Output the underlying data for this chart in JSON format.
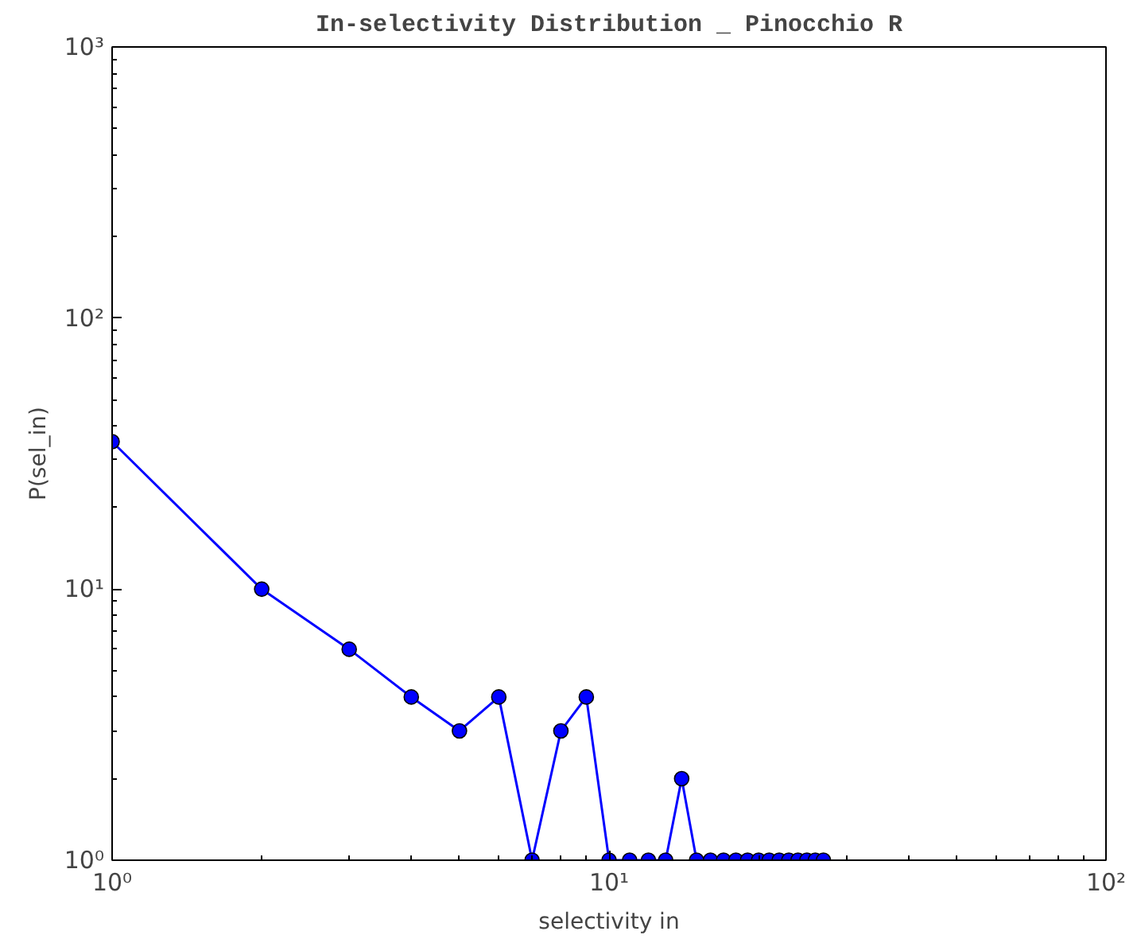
{
  "chart_data": {
    "type": "line",
    "title": "In-selectivity Distribution _ Pinocchio R",
    "xlabel": "selectivity in",
    "ylabel": "P(sel_in)",
    "x": [
      1,
      2,
      3,
      4,
      5,
      6,
      7,
      8,
      9,
      10,
      11,
      12,
      13,
      14,
      15,
      16,
      17,
      18,
      19,
      20,
      21,
      22,
      23,
      24,
      25,
      26,
      27
    ],
    "series": [
      {
        "color": "#0000ff",
        "values": [
          35,
          10,
          6,
          4,
          3,
          4,
          1,
          3,
          4,
          1,
          1,
          1,
          1,
          2,
          1,
          1,
          1,
          1,
          1,
          1,
          1,
          1,
          1,
          1,
          1,
          1,
          1
        ]
      }
    ],
    "log": "xy",
    "marker": "circle",
    "line_style": "solid",
    "grid": false,
    "xlim": [
      1,
      100
    ],
    "ylim": [
      1,
      1000
    ],
    "xticks": [
      {
        "value": 1,
        "label": "10⁰"
      },
      {
        "value": 10,
        "label": "10¹"
      },
      {
        "value": 100,
        "label": "10²"
      }
    ],
    "yticks": [
      {
        "value": 1,
        "label": "10⁰"
      },
      {
        "value": 10,
        "label": "10¹"
      },
      {
        "value": 100,
        "label": "10²"
      },
      {
        "value": 1000,
        "label": "10³"
      }
    ]
  }
}
